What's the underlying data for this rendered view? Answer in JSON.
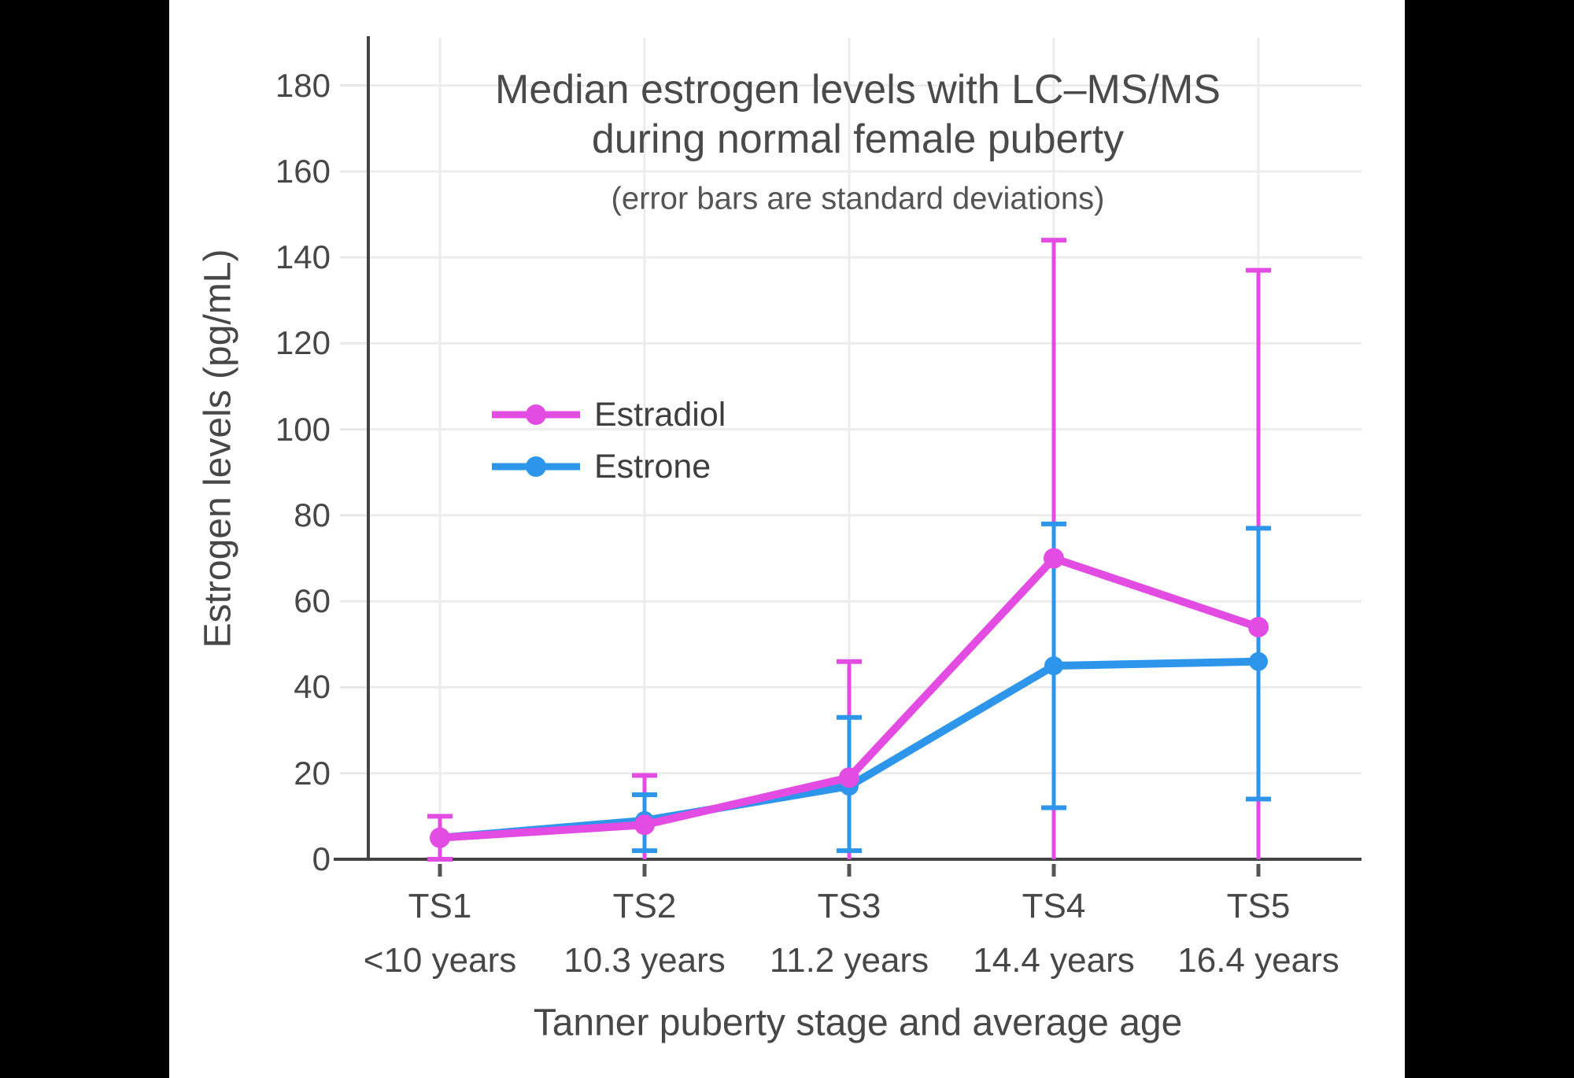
{
  "page": {
    "background": "#000000",
    "canvas_background": "#FFFFFF",
    "letterbox_left_width": 215,
    "letterbox_right_start": 1785
  },
  "chart_data": {
    "type": "line",
    "title": "Median estrogen levels with LC–MS/MS",
    "title_line2": "during normal female puberty",
    "subtitle": "(error bars are standard deviations)",
    "xlabel": "Tanner puberty stage and average age",
    "ylabel": "Estrogen levels (pg/mL)",
    "categories": [
      "TS1",
      "TS2",
      "TS3",
      "TS4",
      "TS5"
    ],
    "category_sublabels": [
      "<10 years",
      "10.3 years",
      "11.2 years",
      "14.4 years",
      "16.4 years"
    ],
    "y_ticks": [
      0,
      20,
      40,
      60,
      80,
      100,
      120,
      140,
      160,
      180
    ],
    "ylim": [
      0,
      191
    ],
    "grid": true,
    "legend_position": "inside-left-middle",
    "error_bars": "standard deviations",
    "series": [
      {
        "name": "Estradiol",
        "color": "#E24CE2",
        "values": [
          5,
          8,
          19,
          70,
          54
        ],
        "err_upper": [
          10,
          19.5,
          46,
          144,
          137
        ],
        "err_lower": [
          0,
          0,
          0,
          0,
          0
        ],
        "lower_cap": [
          true,
          false,
          false,
          false,
          false
        ]
      },
      {
        "name": "Estrone",
        "color": "#2E96EA",
        "values": [
          5,
          9,
          17,
          45,
          46
        ],
        "err_upper": [
          null,
          15,
          33,
          78,
          77
        ],
        "err_lower": [
          null,
          2,
          2,
          12,
          14
        ],
        "lower_cap": [
          false,
          true,
          true,
          true,
          true
        ]
      }
    ],
    "axis_color": "#444444",
    "grid_color": "#ECECEC",
    "tick_color": "#E8E8E8",
    "text_color": "#474747"
  }
}
